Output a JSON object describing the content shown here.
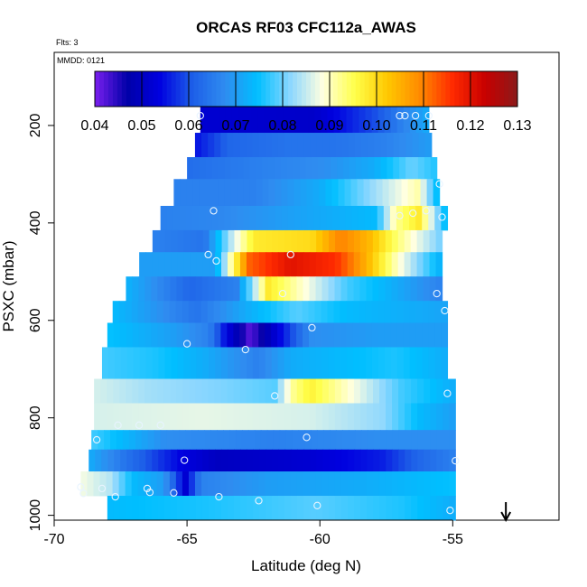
{
  "chart_data": {
    "type": "heatmap",
    "title": "ORCAS RF03 CFC112a_AWAS",
    "annotations": {
      "flights": "Flts: 3",
      "date": "MMDD: 0121"
    },
    "xlabel": "Latitude (deg N)",
    "ylabel": "PSXC (mbar)",
    "xlim": [
      -70,
      -51
    ],
    "ylim": [
      1010,
      50
    ],
    "x_ticks": [
      -70,
      -65,
      -60,
      -55
    ],
    "x_tick_labels": [
      "-70",
      "-65",
      "-60",
      "-55"
    ],
    "y_ticks": [
      200,
      400,
      600,
      800,
      1000
    ],
    "y_tick_labels": [
      "200",
      "400",
      "600",
      "800",
      "1000"
    ],
    "colorbar": {
      "min": 0.04,
      "max": 0.13,
      "ticks": [
        0.04,
        0.05,
        0.06,
        0.07,
        0.08,
        0.09,
        0.1,
        0.11,
        0.12,
        0.13
      ],
      "tick_labels": [
        "0.04",
        "0.05",
        "0.06",
        "0.07",
        "0.08",
        "0.09",
        "0.10",
        "0.11",
        "0.12",
        "0.13"
      ]
    },
    "rows": [
      {
        "p0": 155,
        "p1": 215,
        "x0": -64.5,
        "x1": -55.9,
        "anchors": [
          [
            0,
            0.052
          ],
          [
            0.5,
            0.051
          ],
          [
            0.62,
            0.055
          ],
          [
            0.78,
            0.06
          ],
          [
            0.88,
            0.066
          ],
          [
            1,
            0.072
          ]
        ]
      },
      {
        "p0": 215,
        "p1": 265,
        "x0": -64.7,
        "x1": -55.8,
        "anchors": [
          [
            0,
            0.055
          ],
          [
            0.15,
            0.062
          ],
          [
            0.4,
            0.064
          ],
          [
            0.6,
            0.064
          ],
          [
            0.8,
            0.066
          ],
          [
            1,
            0.07
          ]
        ]
      },
      {
        "p0": 265,
        "p1": 310,
        "x0": -65.0,
        "x1": -55.6,
        "anchors": [
          [
            0,
            0.063
          ],
          [
            0.3,
            0.066
          ],
          [
            0.55,
            0.068
          ],
          [
            0.75,
            0.072
          ],
          [
            0.9,
            0.08
          ],
          [
            1,
            0.076
          ]
        ]
      },
      {
        "p0": 310,
        "p1": 365,
        "x0": -65.5,
        "x1": -55.5,
        "anchors": [
          [
            0,
            0.066
          ],
          [
            0.3,
            0.066
          ],
          [
            0.55,
            0.072
          ],
          [
            0.8,
            0.085
          ],
          [
            0.92,
            0.091
          ],
          [
            1,
            0.072
          ]
        ]
      },
      {
        "p0": 365,
        "p1": 415,
        "x0": -66.0,
        "x1": -55.2,
        "anchors": [
          [
            0,
            0.066
          ],
          [
            0.2,
            0.067
          ],
          [
            0.5,
            0.071
          ],
          [
            0.75,
            0.074
          ],
          [
            0.82,
            0.092
          ],
          [
            0.9,
            0.098
          ],
          [
            1,
            0.072
          ]
        ]
      },
      {
        "p0": 415,
        "p1": 460,
        "x0": -66.3,
        "x1": -55.4,
        "anchors": [
          [
            0,
            0.066
          ],
          [
            0.18,
            0.064
          ],
          [
            0.27,
            0.084
          ],
          [
            0.35,
            0.098
          ],
          [
            0.55,
            0.1
          ],
          [
            0.65,
            0.11
          ],
          [
            0.75,
            0.104
          ],
          [
            0.85,
            0.093
          ],
          [
            1,
            0.08
          ]
        ]
      },
      {
        "p0": 460,
        "p1": 510,
        "x0": -66.8,
        "x1": -55.4,
        "anchors": [
          [
            0,
            0.07
          ],
          [
            0.25,
            0.07
          ],
          [
            0.3,
            0.09
          ],
          [
            0.36,
            0.112
          ],
          [
            0.5,
            0.12
          ],
          [
            0.65,
            0.116
          ],
          [
            0.75,
            0.105
          ],
          [
            0.85,
            0.09
          ],
          [
            1,
            0.072
          ]
        ]
      },
      {
        "p0": 510,
        "p1": 560,
        "x0": -67.3,
        "x1": -55.4,
        "anchors": [
          [
            0,
            0.073
          ],
          [
            0.2,
            0.062
          ],
          [
            0.35,
            0.066
          ],
          [
            0.45,
            0.098
          ],
          [
            0.55,
            0.09
          ],
          [
            0.7,
            0.078
          ],
          [
            0.85,
            0.072
          ],
          [
            1,
            0.066
          ]
        ]
      },
      {
        "p0": 560,
        "p1": 605,
        "x0": -67.8,
        "x1": -55.2,
        "anchors": [
          [
            0,
            0.074
          ],
          [
            0.25,
            0.064
          ],
          [
            0.4,
            0.072
          ],
          [
            0.55,
            0.079
          ],
          [
            0.7,
            0.074
          ],
          [
            1,
            0.071
          ]
        ]
      },
      {
        "p0": 605,
        "p1": 655,
        "x0": -68.0,
        "x1": -55.2,
        "anchors": [
          [
            0,
            0.075
          ],
          [
            0.2,
            0.07
          ],
          [
            0.3,
            0.066
          ],
          [
            0.35,
            0.054
          ],
          [
            0.42,
            0.042
          ],
          [
            0.48,
            0.05
          ],
          [
            0.6,
            0.068
          ],
          [
            0.8,
            0.07
          ],
          [
            1,
            0.07
          ]
        ]
      },
      {
        "p0": 655,
        "p1": 720,
        "x0": -68.2,
        "x1": -55.2,
        "anchors": [
          [
            0,
            0.078
          ],
          [
            0.15,
            0.076
          ],
          [
            0.3,
            0.072
          ],
          [
            0.45,
            0.066
          ],
          [
            0.55,
            0.072
          ],
          [
            0.7,
            0.074
          ],
          [
            0.85,
            0.076
          ],
          [
            1,
            0.072
          ]
        ]
      },
      {
        "p0": 720,
        "p1": 770,
        "x0": -68.5,
        "x1": -54.9,
        "anchors": [
          [
            0,
            0.086
          ],
          [
            0.15,
            0.083
          ],
          [
            0.35,
            0.081
          ],
          [
            0.5,
            0.079
          ],
          [
            0.55,
            0.092
          ],
          [
            0.6,
            0.097
          ],
          [
            0.72,
            0.088
          ],
          [
            0.85,
            0.078
          ],
          [
            1,
            0.072
          ]
        ]
      },
      {
        "p0": 770,
        "p1": 825,
        "x0": -68.5,
        "x1": -54.9,
        "anchors": [
          [
            0,
            0.086
          ],
          [
            0.3,
            0.087
          ],
          [
            0.6,
            0.086
          ],
          [
            0.8,
            0.082
          ],
          [
            0.9,
            0.074
          ],
          [
            1,
            0.07
          ]
        ]
      },
      {
        "p0": 825,
        "p1": 865,
        "x0": -68.6,
        "x1": -54.9,
        "anchors": [
          [
            0,
            0.078
          ],
          [
            0.08,
            0.074
          ],
          [
            0.2,
            0.068
          ],
          [
            0.5,
            0.066
          ],
          [
            0.8,
            0.068
          ],
          [
            1,
            0.068
          ]
        ]
      },
      {
        "p0": 865,
        "p1": 910,
        "x0": -68.7,
        "x1": -54.9,
        "anchors": [
          [
            0,
            0.072
          ],
          [
            0.1,
            0.064
          ],
          [
            0.25,
            0.054
          ],
          [
            0.35,
            0.05
          ],
          [
            0.6,
            0.052
          ],
          [
            0.8,
            0.056
          ],
          [
            0.9,
            0.062
          ],
          [
            1,
            0.066
          ]
        ]
      },
      {
        "p0": 910,
        "p1": 960,
        "x0": -69.0,
        "x1": -54.9,
        "anchors": [
          [
            0,
            0.088
          ],
          [
            0.08,
            0.084
          ],
          [
            0.14,
            0.074
          ],
          [
            0.22,
            0.07
          ],
          [
            0.28,
            0.052
          ],
          [
            0.32,
            0.066
          ],
          [
            0.5,
            0.07
          ],
          [
            0.75,
            0.072
          ],
          [
            1,
            0.075
          ]
        ]
      },
      {
        "p0": 960,
        "p1": 1010,
        "x0": -68.0,
        "x1": -54.9,
        "anchors": [
          [
            0,
            0.074
          ],
          [
            0.3,
            0.076
          ],
          [
            0.6,
            0.079
          ],
          [
            0.85,
            0.076
          ],
          [
            1,
            0.072
          ]
        ]
      }
    ],
    "sample_points": [
      {
        "lat": -64.5,
        "p": 180
      },
      {
        "lat": -56.8,
        "p": 180
      },
      {
        "lat": -57.0,
        "p": 180
      },
      {
        "lat": -56.4,
        "p": 180
      },
      {
        "lat": -55.9,
        "p": 180
      },
      {
        "lat": -55.5,
        "p": 320
      },
      {
        "lat": -64.0,
        "p": 375
      },
      {
        "lat": -57.0,
        "p": 385
      },
      {
        "lat": -56.5,
        "p": 380
      },
      {
        "lat": -56.0,
        "p": 375
      },
      {
        "lat": -55.4,
        "p": 388
      },
      {
        "lat": -64.2,
        "p": 465
      },
      {
        "lat": -63.9,
        "p": 478
      },
      {
        "lat": -61.1,
        "p": 465
      },
      {
        "lat": -61.4,
        "p": 545
      },
      {
        "lat": -55.6,
        "p": 545
      },
      {
        "lat": -55.3,
        "p": 580
      },
      {
        "lat": -60.3,
        "p": 615
      },
      {
        "lat": -65.0,
        "p": 648
      },
      {
        "lat": -62.8,
        "p": 660
      },
      {
        "lat": -61.7,
        "p": 755
      },
      {
        "lat": -55.2,
        "p": 750
      },
      {
        "lat": -67.6,
        "p": 815
      },
      {
        "lat": -66.8,
        "p": 815
      },
      {
        "lat": -66.0,
        "p": 815
      },
      {
        "lat": -68.4,
        "p": 845
      },
      {
        "lat": -60.5,
        "p": 840
      },
      {
        "lat": -65.1,
        "p": 887
      },
      {
        "lat": -54.9,
        "p": 888
      },
      {
        "lat": -69.0,
        "p": 942
      },
      {
        "lat": -68.9,
        "p": 955
      },
      {
        "lat": -68.2,
        "p": 945
      },
      {
        "lat": -67.7,
        "p": 962
      },
      {
        "lat": -66.5,
        "p": 945
      },
      {
        "lat": -66.4,
        "p": 953
      },
      {
        "lat": -65.5,
        "p": 954
      },
      {
        "lat": -63.8,
        "p": 962
      },
      {
        "lat": -62.3,
        "p": 970
      },
      {
        "lat": -60.1,
        "p": 980
      },
      {
        "lat": -55.1,
        "p": 990
      }
    ],
    "arrow": {
      "lat": -53.0,
      "direction": "down"
    }
  },
  "colors": {
    "scale_stops": [
      "#7a1fef",
      "#0000a8",
      "#0000e0",
      "#1d5fe8",
      "#2f8cf0",
      "#00bfff",
      "#8ad6ff",
      "#ffffe0",
      "#ffff4a",
      "#ffc800",
      "#ff8a00",
      "#ff2a00",
      "#c80000",
      "#8b1a1a"
    ],
    "point_outline": "#e8f4ff",
    "axis": "#000000"
  }
}
